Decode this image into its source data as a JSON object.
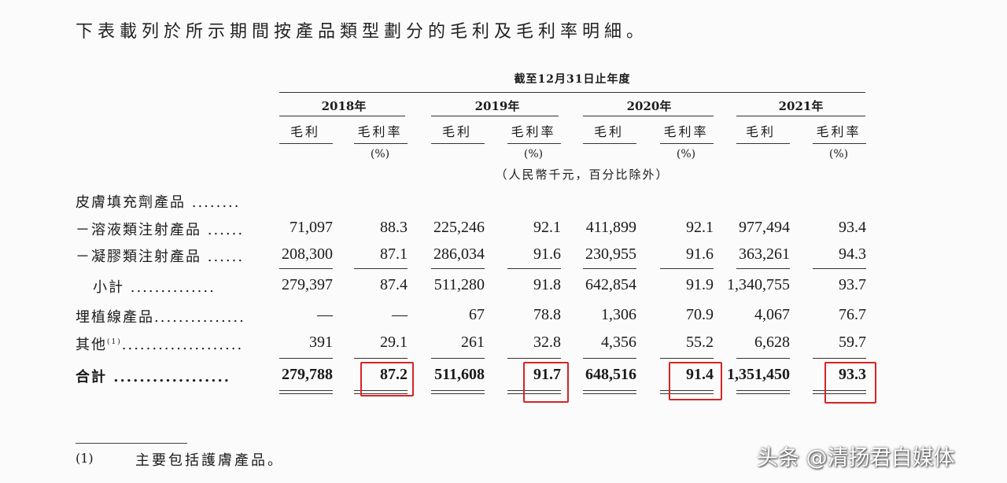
{
  "intro_text": "下表載列於所示期間按產品類型劃分的毛利及毛利率明細。",
  "period_header": "截至12月31日止年度",
  "years": [
    "2018年",
    "2019年",
    "2020年",
    "2021年"
  ],
  "col_gross_profit": "毛利",
  "col_margin": "毛利率",
  "pct_unit": "(%)",
  "unit_note": "（人民幣千元，百分比除外）",
  "rows": [
    {
      "label": "皮膚填充劑產品 ........",
      "values": [
        "",
        "",
        "",
        "",
        "",
        "",
        "",
        ""
      ]
    },
    {
      "label": "－溶液類注射產品 ......",
      "values": [
        "71,097",
        "88.3",
        "225,246",
        "92.1",
        "411,899",
        "92.1",
        "977,494",
        "93.4"
      ]
    },
    {
      "label": "－凝膠類注射產品 ......",
      "values": [
        "208,300",
        "87.1",
        "286,034",
        "91.6",
        "230,955",
        "91.6",
        "363,261",
        "94.3"
      ]
    },
    {
      "label": "小計 ..............",
      "values": [
        "279,397",
        "87.4",
        "511,280",
        "91.8",
        "642,854",
        "91.9",
        "1,340,755",
        "93.7"
      ]
    },
    {
      "label": "埋植線產品...............",
      "values": [
        "—",
        "—",
        "67",
        "78.8",
        "1,306",
        "70.9",
        "4,067",
        "76.7"
      ]
    },
    {
      "label": "其他",
      "sup": "(1)",
      "dots": "....................",
      "values": [
        "391",
        "29.1",
        "261",
        "32.8",
        "4,356",
        "55.2",
        "6,628",
        "59.7"
      ]
    },
    {
      "label": "合計 ..................",
      "values": [
        "279,788",
        "87.2",
        "511,608",
        "91.7",
        "648,516",
        "91.4",
        "1,351,450",
        "93.3"
      ]
    }
  ],
  "footnote_num": "(1)",
  "footnote_text": "主要包括護膚產品。",
  "watermark": "头条 @清扬君自媒体",
  "highlight_color": "#d62424"
}
